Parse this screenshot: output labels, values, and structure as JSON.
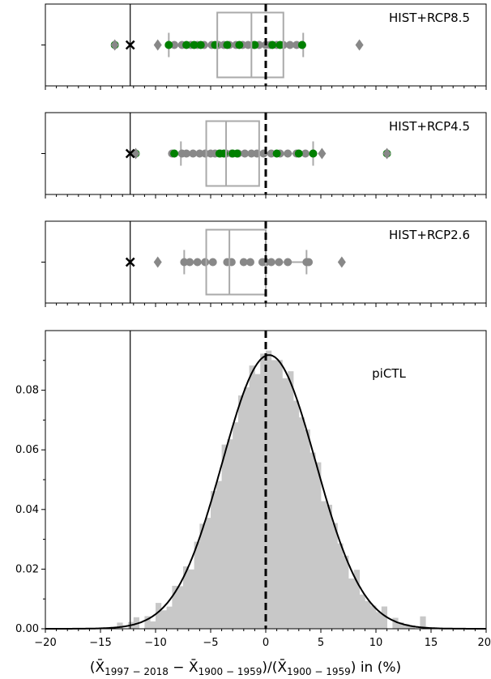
{
  "chart_data": {
    "type": "boxplot+histogram",
    "xlim": [
      -20,
      20
    ],
    "x_ticks": [
      -20,
      -15,
      -10,
      -5,
      0,
      5,
      10,
      15,
      20
    ],
    "x_tick_labels": [
      "−20",
      "−15",
      "−10",
      "−5",
      "0",
      "5",
      "10",
      "15",
      "20"
    ],
    "xlabel_parts": {
      "open": "(",
      "xbar": "X̄",
      "sub1": "1997 − 2018",
      "minus": " − ",
      "sub2": "1900 − 1959",
      "mid": ")/(",
      "close": ") in (%)"
    },
    "observed_line_x": -12.3,
    "zero_line_x": 0,
    "panels": [
      {
        "name": "HIST+RCP8.5",
        "box": {
          "q1": -4.4,
          "median": -1.3,
          "q3": 1.6,
          "whisker_low": -8.8,
          "whisker_high": 3.4
        },
        "outliers": [
          -13.7,
          -9.8,
          8.5
        ],
        "grey_points": [
          -8.8,
          -8.3,
          -7.6,
          -6.8,
          -6.2,
          -5.6,
          -4.9,
          -4.3,
          -3.8,
          -3.3,
          -2.7,
          -2.1,
          -1.6,
          -1.1,
          -0.6,
          0.0,
          0.4,
          1.0,
          1.6,
          2.2,
          2.8,
          3.3
        ],
        "green_points": [
          -13.7,
          -8.8,
          -7.2,
          -6.5,
          -5.9,
          -4.6,
          -3.5,
          -2.4,
          -1.0,
          0.6,
          1.3,
          3.3
        ],
        "observed_marker": -12.3
      },
      {
        "name": "HIST+RCP4.5",
        "box": {
          "q1": -5.4,
          "median": -3.6,
          "q3": -0.6,
          "whisker_low": -7.7,
          "whisker_high": 4.3
        },
        "outliers": [
          -11.8,
          5.1,
          11.0
        ],
        "grey_points": [
          -8.5,
          -7.6,
          -7.2,
          -6.6,
          -6.0,
          -5.5,
          -5.0,
          -4.6,
          -4.1,
          -3.6,
          -3.1,
          -2.5,
          -1.9,
          -1.3,
          -0.8,
          -0.2,
          0.5,
          1.3,
          2.0,
          2.8,
          3.6,
          4.3
        ],
        "green_points": [
          -11.8,
          -8.3,
          -4.2,
          -3.8,
          -3.0,
          -2.6,
          1.0,
          3.0,
          4.3,
          11.0
        ],
        "observed_marker": -12.3
      },
      {
        "name": "HIST+RCP2.6",
        "box": {
          "q1": -5.4,
          "median": -3.3,
          "q3": 0.0,
          "whisker_low": -7.4,
          "whisker_high": 3.7
        },
        "outliers": [
          -9.8,
          6.9
        ],
        "grey_points": [
          -7.4,
          -6.9,
          -6.2,
          -5.5,
          -4.8,
          -3.5,
          -3.1,
          -2.0,
          -1.4,
          -0.3,
          0.0,
          0.5,
          1.2,
          2.0,
          3.7,
          3.9
        ],
        "green_points": [],
        "observed_marker": -12.3
      }
    ],
    "hist_panel": {
      "name": "piCTL",
      "ylim": [
        0,
        0.1
      ],
      "y_ticks": [
        0.0,
        0.02,
        0.04,
        0.06,
        0.08
      ],
      "y_tick_labels": [
        "0.00",
        "0.02",
        "0.04",
        "0.06",
        "0.08"
      ],
      "kde_mu": 0.3,
      "kde_sigma": 4.25,
      "kde_peak": 0.0918
    },
    "colors": {
      "box": "#aaaaaa",
      "points": "#888888",
      "green": "#008000",
      "hist_fill": "#c8c8c8",
      "kde": "#000000"
    }
  }
}
